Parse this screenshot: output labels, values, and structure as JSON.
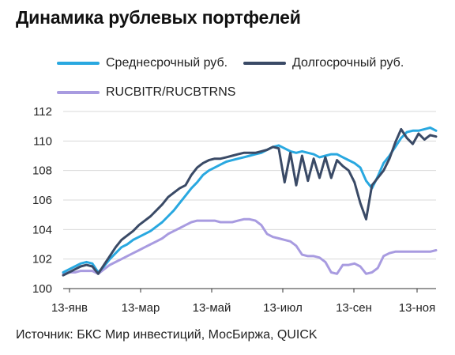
{
  "title": "Динамика рублевых портфелей",
  "source": "Источник: БКС Мир инвестиций, МосБиржа, QUICK",
  "colors": {
    "medium": "#29a8e0",
    "long": "#3a4a66",
    "index": "#a89be0",
    "grid": "#d9d9d9",
    "axis": "#333333"
  },
  "chart_data": {
    "type": "line",
    "title": "Динамика рублевых портфелей",
    "xlabel": "",
    "ylabel": "",
    "ylim": [
      100,
      112
    ],
    "yticks": [
      100,
      102,
      104,
      106,
      108,
      110,
      112
    ],
    "xticks": [
      "13-янв",
      "13-мар",
      "13-май",
      "13-июл",
      "13-сен",
      "13-ноя"
    ],
    "grid": true,
    "legend_position": "top-left",
    "x": [
      0,
      5,
      10,
      15,
      20,
      25,
      30,
      35,
      40,
      45,
      50,
      55,
      60,
      65,
      70,
      75,
      80,
      85,
      90,
      95,
      100,
      105,
      110,
      115,
      120,
      125,
      130,
      135,
      140,
      145,
      150,
      155,
      160,
      165,
      170,
      175,
      180,
      185,
      190,
      195,
      200,
      205,
      210,
      215,
      220,
      225,
      230,
      235,
      240,
      245,
      250,
      255,
      260,
      265,
      270,
      275,
      280,
      285,
      290,
      295,
      300,
      305,
      310,
      315,
      320
    ],
    "series": [
      {
        "name": "Среднесрочный руб.",
        "color": "#29a8e0",
        "values": [
          101.1,
          101.3,
          101.5,
          101.7,
          101.8,
          101.7,
          101.1,
          101.5,
          102.0,
          102.4,
          102.8,
          103.0,
          103.3,
          103.5,
          103.7,
          103.9,
          104.2,
          104.5,
          104.9,
          105.3,
          105.8,
          106.3,
          106.8,
          107.2,
          107.7,
          108.0,
          108.2,
          108.4,
          108.6,
          108.7,
          108.8,
          108.9,
          109.0,
          109.1,
          109.2,
          109.4,
          109.6,
          109.7,
          109.5,
          109.3,
          109.2,
          109.3,
          109.2,
          109.1,
          108.9,
          109.0,
          109.1,
          109.1,
          108.9,
          108.7,
          108.5,
          108.2,
          107.3,
          106.8,
          107.6,
          108.5,
          109.0,
          109.6,
          110.2,
          110.6,
          110.7,
          110.7,
          110.8,
          110.9,
          110.7
        ]
      },
      {
        "name": "Долгосрочный руб.",
        "color": "#3a4a66",
        "values": [
          100.9,
          101.1,
          101.3,
          101.5,
          101.6,
          101.5,
          101.0,
          101.6,
          102.2,
          102.8,
          103.3,
          103.6,
          103.9,
          104.3,
          104.6,
          104.9,
          105.3,
          105.7,
          106.2,
          106.5,
          106.8,
          107.0,
          107.7,
          108.2,
          108.5,
          108.7,
          108.8,
          108.8,
          108.9,
          109.0,
          109.1,
          109.2,
          109.2,
          109.2,
          109.3,
          109.4,
          109.6,
          109.5,
          107.2,
          109.2,
          107.0,
          109.0,
          107.3,
          108.8,
          107.5,
          108.9,
          107.5,
          108.7,
          108.3,
          108.0,
          107.2,
          105.8,
          104.7,
          107.0,
          107.5,
          108.0,
          108.8,
          109.9,
          110.8,
          110.2,
          109.8,
          110.5,
          110.1,
          110.4,
          110.3
        ]
      },
      {
        "name": "RUCBITR/RUCBTRNS",
        "color": "#a89be0",
        "values": [
          101.0,
          101.1,
          101.1,
          101.2,
          101.2,
          101.2,
          101.0,
          101.3,
          101.6,
          101.8,
          102.0,
          102.2,
          102.4,
          102.6,
          102.8,
          103.0,
          103.2,
          103.4,
          103.7,
          103.9,
          104.1,
          104.3,
          104.5,
          104.6,
          104.6,
          104.6,
          104.6,
          104.5,
          104.5,
          104.5,
          104.6,
          104.7,
          104.7,
          104.6,
          104.3,
          103.7,
          103.5,
          103.4,
          103.3,
          103.2,
          102.9,
          102.3,
          102.2,
          102.2,
          102.1,
          101.8,
          101.1,
          101.0,
          101.6,
          101.6,
          101.7,
          101.5,
          101.0,
          101.1,
          101.4,
          102.2,
          102.4,
          102.5,
          102.5,
          102.5,
          102.5,
          102.5,
          102.5,
          102.5,
          102.6
        ]
      }
    ]
  }
}
